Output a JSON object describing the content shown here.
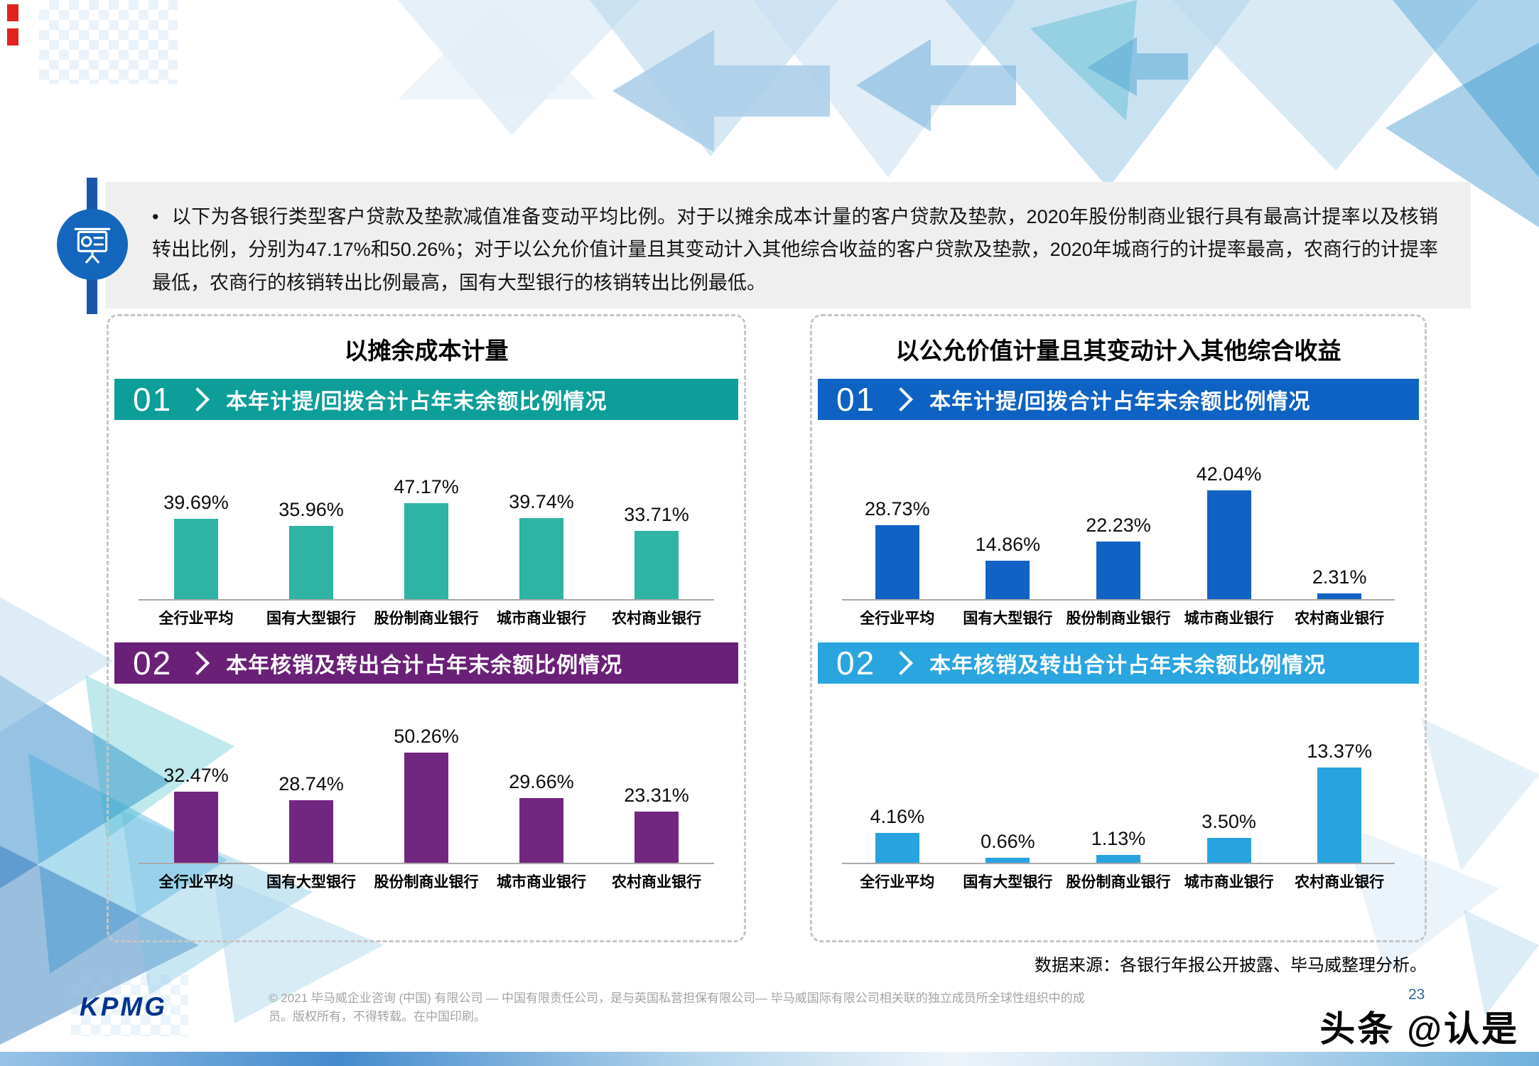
{
  "page": {
    "bullet": "•",
    "top_note": "以下为各银行类型客户贷款及垫款减值准备变动平均比例。对于以摊余成本计量的客户贷款及垫款，2020年股份制商业银行具有最高计提率以及核销转出比例，分别为47.17%和50.26%；对于以公允价值计量且其变动计入其他综合收益的客户贷款及垫款，2020年城商行的计提率最高，农商行的计提率最低，农商行的核销转出比例最高，国有大型银行的核销转出比例最低。",
    "source_note": "数据来源：各银行年报公开披露、毕马威整理分析。",
    "page_number": "23",
    "watermark": "头条 @认是"
  },
  "footer": {
    "logo": "KPMG",
    "copyright_line1": "© 2021 毕马威企业咨询 (中国) 有限公司 — 中国有限责任公司，是与英国私营担保有限公司— 毕马威国际有限公司相关联的独立成员所全球性组织中的成",
    "copyright_line2": "员。版权所有，不得转载。在中国印刷。"
  },
  "panels": [
    {
      "title": "以摊余成本计量",
      "sections": [
        {
          "number": "01",
          "label": "本年计提/回拨合计占年末余额比例情况",
          "header_color": "#0d9e99"
        },
        {
          "number": "02",
          "label": "本年核销及转出合计占年末余额比例情况",
          "header_color": "#6b2078"
        }
      ]
    },
    {
      "title": "以公允价值计量且其变动计入其他综合收益",
      "sections": [
        {
          "number": "01",
          "label": "本年计提/回拨合计占年末余额比例情况",
          "header_color": "#0d62c3"
        },
        {
          "number": "02",
          "label": "本年核销及转出合计占年末余额比例情况",
          "header_color": "#2aa5df"
        }
      ]
    }
  ],
  "chart_data": [
    {
      "type": "bar",
      "panel": "以摊余成本计量",
      "title": "本年计提/回拨合计占年末余额比例情况",
      "categories": [
        "全行业平均",
        "国有大型银行",
        "股份制商业银行",
        "城市商业银行",
        "农村商业银行"
      ],
      "values": [
        39.69,
        35.96,
        47.17,
        39.74,
        33.71
      ],
      "labels": [
        "39.69%",
        "35.96%",
        "47.17%",
        "39.74%",
        "33.71%"
      ],
      "unit": "%",
      "bar_color": "#2fb3a4",
      "ylim": [
        0,
        70
      ],
      "grid": false,
      "legend": "none"
    },
    {
      "type": "bar",
      "panel": "以摊余成本计量",
      "title": "本年核销及转出合计占年末余额比例情况",
      "categories": [
        "全行业平均",
        "国有大型银行",
        "股份制商业银行",
        "城市商业银行",
        "农村商业银行"
      ],
      "values": [
        32.47,
        28.74,
        50.26,
        29.66,
        23.31
      ],
      "labels": [
        "32.47%",
        "28.74%",
        "50.26%",
        "29.66%",
        "23.31%"
      ],
      "unit": "%",
      "bar_color": "#71267f",
      "ylim": [
        0,
        65
      ],
      "grid": false,
      "legend": "none"
    },
    {
      "type": "bar",
      "panel": "以公允价值计量且其变动计入其他综合收益",
      "title": "本年计提/回拨合计占年末余额比例情况",
      "categories": [
        "全行业平均",
        "国有大型银行",
        "股份制商业银行",
        "城市商业银行",
        "农村商业银行"
      ],
      "values": [
        28.73,
        14.86,
        22.23,
        42.04,
        2.31
      ],
      "labels": [
        "28.73%",
        "14.86%",
        "22.23%",
        "42.04%",
        "2.31%"
      ],
      "unit": "%",
      "bar_color": "#1261c4",
      "ylim": [
        0,
        55
      ],
      "grid": false,
      "legend": "none"
    },
    {
      "type": "bar",
      "panel": "以公允价值计量且其变动计入其他综合收益",
      "title": "本年核销及转出合计占年末余额比例情况",
      "categories": [
        "全行业平均",
        "国有大型银行",
        "股份制商业银行",
        "城市商业银行",
        "农村商业银行"
      ],
      "values": [
        4.16,
        0.66,
        1.13,
        3.5,
        13.37
      ],
      "labels": [
        "4.16%",
        "0.66%",
        "1.13%",
        "3.50%",
        "13.37%"
      ],
      "unit": "%",
      "bar_color": "#29a3e0",
      "ylim": [
        0,
        20
      ],
      "grid": false,
      "legend": "none"
    }
  ]
}
